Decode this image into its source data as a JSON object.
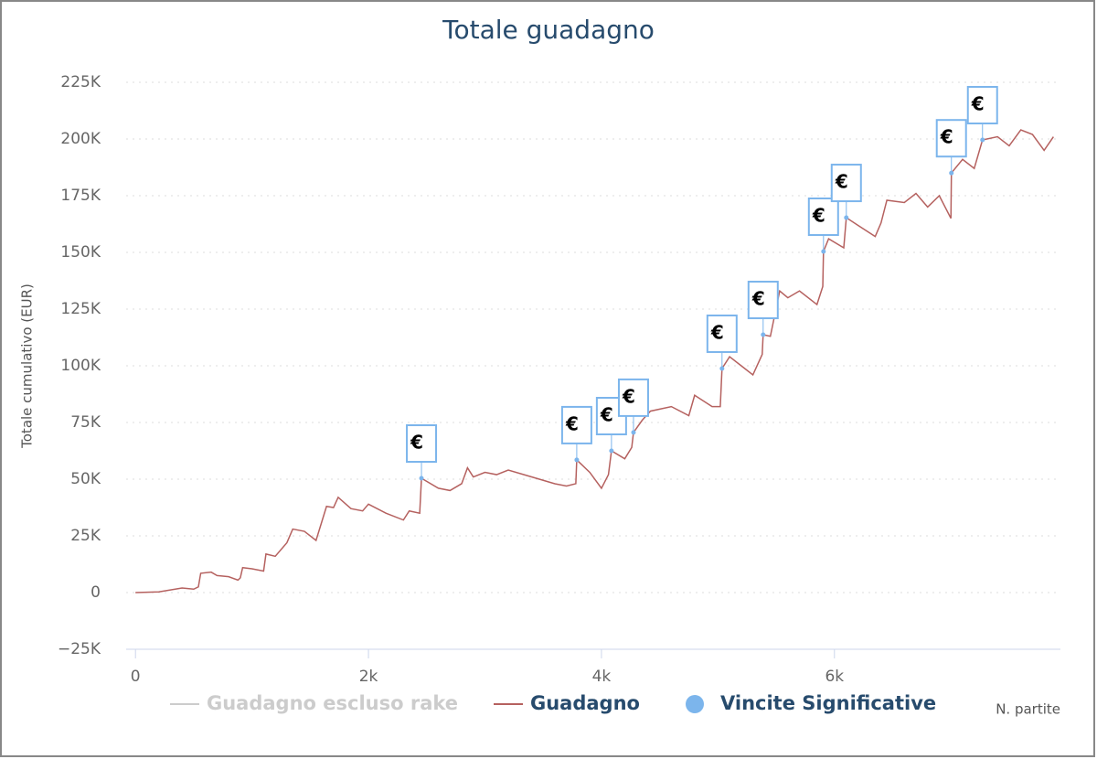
{
  "chart_data": {
    "type": "line",
    "title": "Totale guadagno",
    "y_axis_label": "Totale cumulativo (EUR)",
    "x_axis_label": "N. partite",
    "xlim": [
      -80,
      7940
    ],
    "ylim": [
      -25000,
      225000
    ],
    "xticks": [
      0,
      {
        "value": 2000,
        "label": "2k"
      },
      {
        "value": 4000,
        "label": "4k"
      },
      {
        "value": 6000,
        "label": "6k"
      }
    ],
    "yticks": [
      {
        "value": -25000,
        "label": "−25K"
      },
      0,
      {
        "value": 25000,
        "label": "25K"
      },
      {
        "value": 50000,
        "label": "50K"
      },
      {
        "value": 75000,
        "label": "75K"
      },
      {
        "value": 100000,
        "label": "100K"
      },
      {
        "value": 125000,
        "label": "125K"
      },
      {
        "value": 150000,
        "label": "150K"
      },
      {
        "value": 175000,
        "label": "175K"
      },
      {
        "value": 200000,
        "label": "200K"
      },
      {
        "value": 225000,
        "label": "225K"
      }
    ],
    "grid": true,
    "legend": "bottom",
    "series": [
      {
        "name": "Guadagno escluso rake",
        "color": "#cccccc",
        "visible": false
      },
      {
        "name": "Guadagno",
        "color": "#b5615f",
        "x": [
          0,
          200,
          400,
          500,
          540,
          560,
          650,
          700,
          800,
          880,
          900,
          920,
          1000,
          1100,
          1120,
          1200,
          1300,
          1350,
          1450,
          1550,
          1640,
          1700,
          1740,
          1850,
          1950,
          2000,
          2150,
          2300,
          2350,
          2440,
          2455,
          2600,
          2700,
          2800,
          2850,
          2900,
          3000,
          3100,
          3200,
          3400,
          3600,
          3700,
          3780,
          3788,
          3900,
          4000,
          4060,
          4086,
          4200,
          4260,
          4275,
          4350,
          4420,
          4600,
          4750,
          4800,
          4950,
          5020,
          5035,
          5100,
          5200,
          5300,
          5380,
          5388,
          5450,
          5530,
          5600,
          5700,
          5850,
          5900,
          5906,
          5950,
          6080,
          6102,
          6200,
          6350,
          6400,
          6450,
          6600,
          6700,
          6800,
          6900,
          7000,
          7004,
          7100,
          7200,
          7271,
          7400,
          7500,
          7600,
          7700,
          7800,
          7880
        ],
        "values": [
          0,
          300,
          2000,
          1500,
          2500,
          8500,
          9000,
          7500,
          7000,
          5500,
          6500,
          11000,
          10500,
          9500,
          17000,
          16000,
          22000,
          28000,
          27000,
          23000,
          38000,
          37500,
          42000,
          37000,
          36000,
          39000,
          35000,
          32000,
          36000,
          35000,
          50400,
          46000,
          45000,
          48000,
          55000,
          51000,
          53000,
          52000,
          54000,
          51000,
          48000,
          47000,
          48000,
          58500,
          53000,
          46000,
          52000,
          62500,
          59000,
          64000,
          70600,
          76000,
          80000,
          82000,
          78000,
          87000,
          82000,
          82000,
          98800,
          104000,
          100000,
          96000,
          105000,
          113700,
          113000,
          133000,
          130000,
          133000,
          127000,
          135000,
          150400,
          156000,
          152000,
          165300,
          162000,
          157000,
          163000,
          173000,
          172000,
          176000,
          170000,
          175000,
          165000,
          185000,
          191000,
          187000,
          199600,
          201000,
          197000,
          204000,
          202000,
          195000,
          201000
        ]
      },
      {
        "name": "Vincite Significative",
        "color": "#7cb5ec",
        "flag_label": "€",
        "x": [
          2455,
          3788,
          4086,
          4275,
          5035,
          5388,
          5906,
          6102,
          7004,
          7271
        ],
        "values": [
          50400,
          58500,
          62500,
          70600,
          98800,
          113700,
          150400,
          165300,
          185000,
          199600
        ]
      }
    ]
  }
}
